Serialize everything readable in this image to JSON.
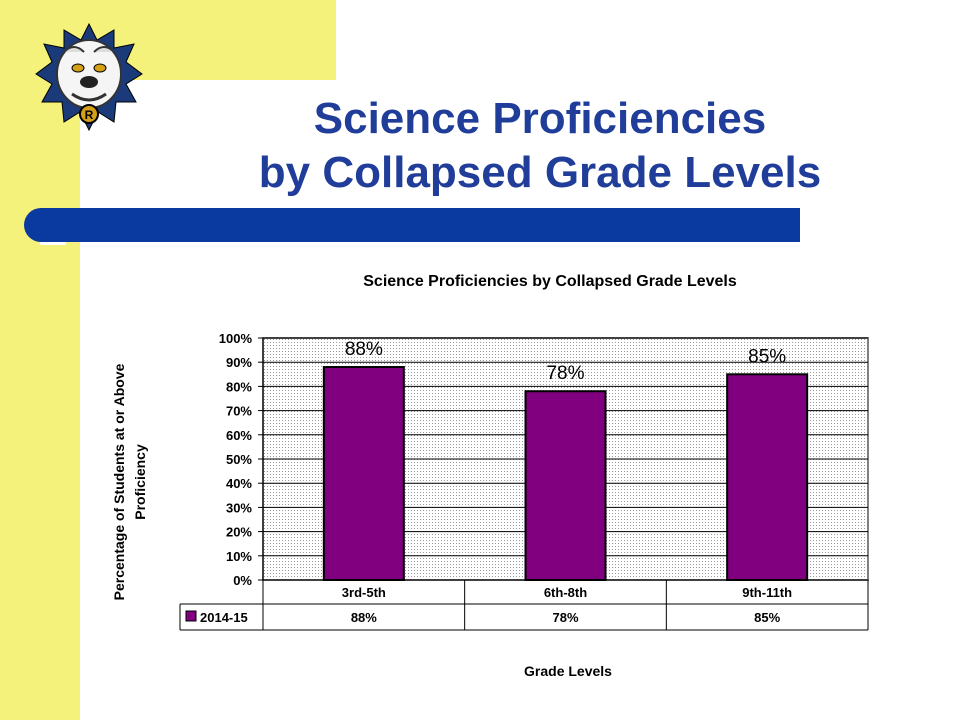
{
  "slide": {
    "title_line1": "Science Proficiencies",
    "title_line2": "by Collapsed Grade Levels"
  },
  "colors": {
    "yellow": "#f4f27a",
    "title_blue": "#1f3d99",
    "bar_blue": "#0a3aa0",
    "bar_fill": "#800080"
  },
  "icons": [
    "bulldog-mascot-logo-icon"
  ],
  "chart_data": {
    "type": "bar",
    "title": "Science Proficiencies by Collapsed Grade Levels",
    "xlabel": "Grade Levels",
    "ylabel": "Percentage of Students at or Above Proficiency",
    "categories": [
      "3rd-5th",
      "6th-8th",
      "9th-11th"
    ],
    "series": [
      {
        "name": "2014-15",
        "values": [
          88,
          78,
          85
        ],
        "labels": [
          "88%",
          "78%",
          "85%"
        ]
      }
    ],
    "ylim": [
      0,
      100
    ],
    "yticks": [
      "0%",
      "10%",
      "20%",
      "30%",
      "40%",
      "50%",
      "60%",
      "70%",
      "80%",
      "90%",
      "100%"
    ],
    "grid": true,
    "legend": "data-table"
  }
}
